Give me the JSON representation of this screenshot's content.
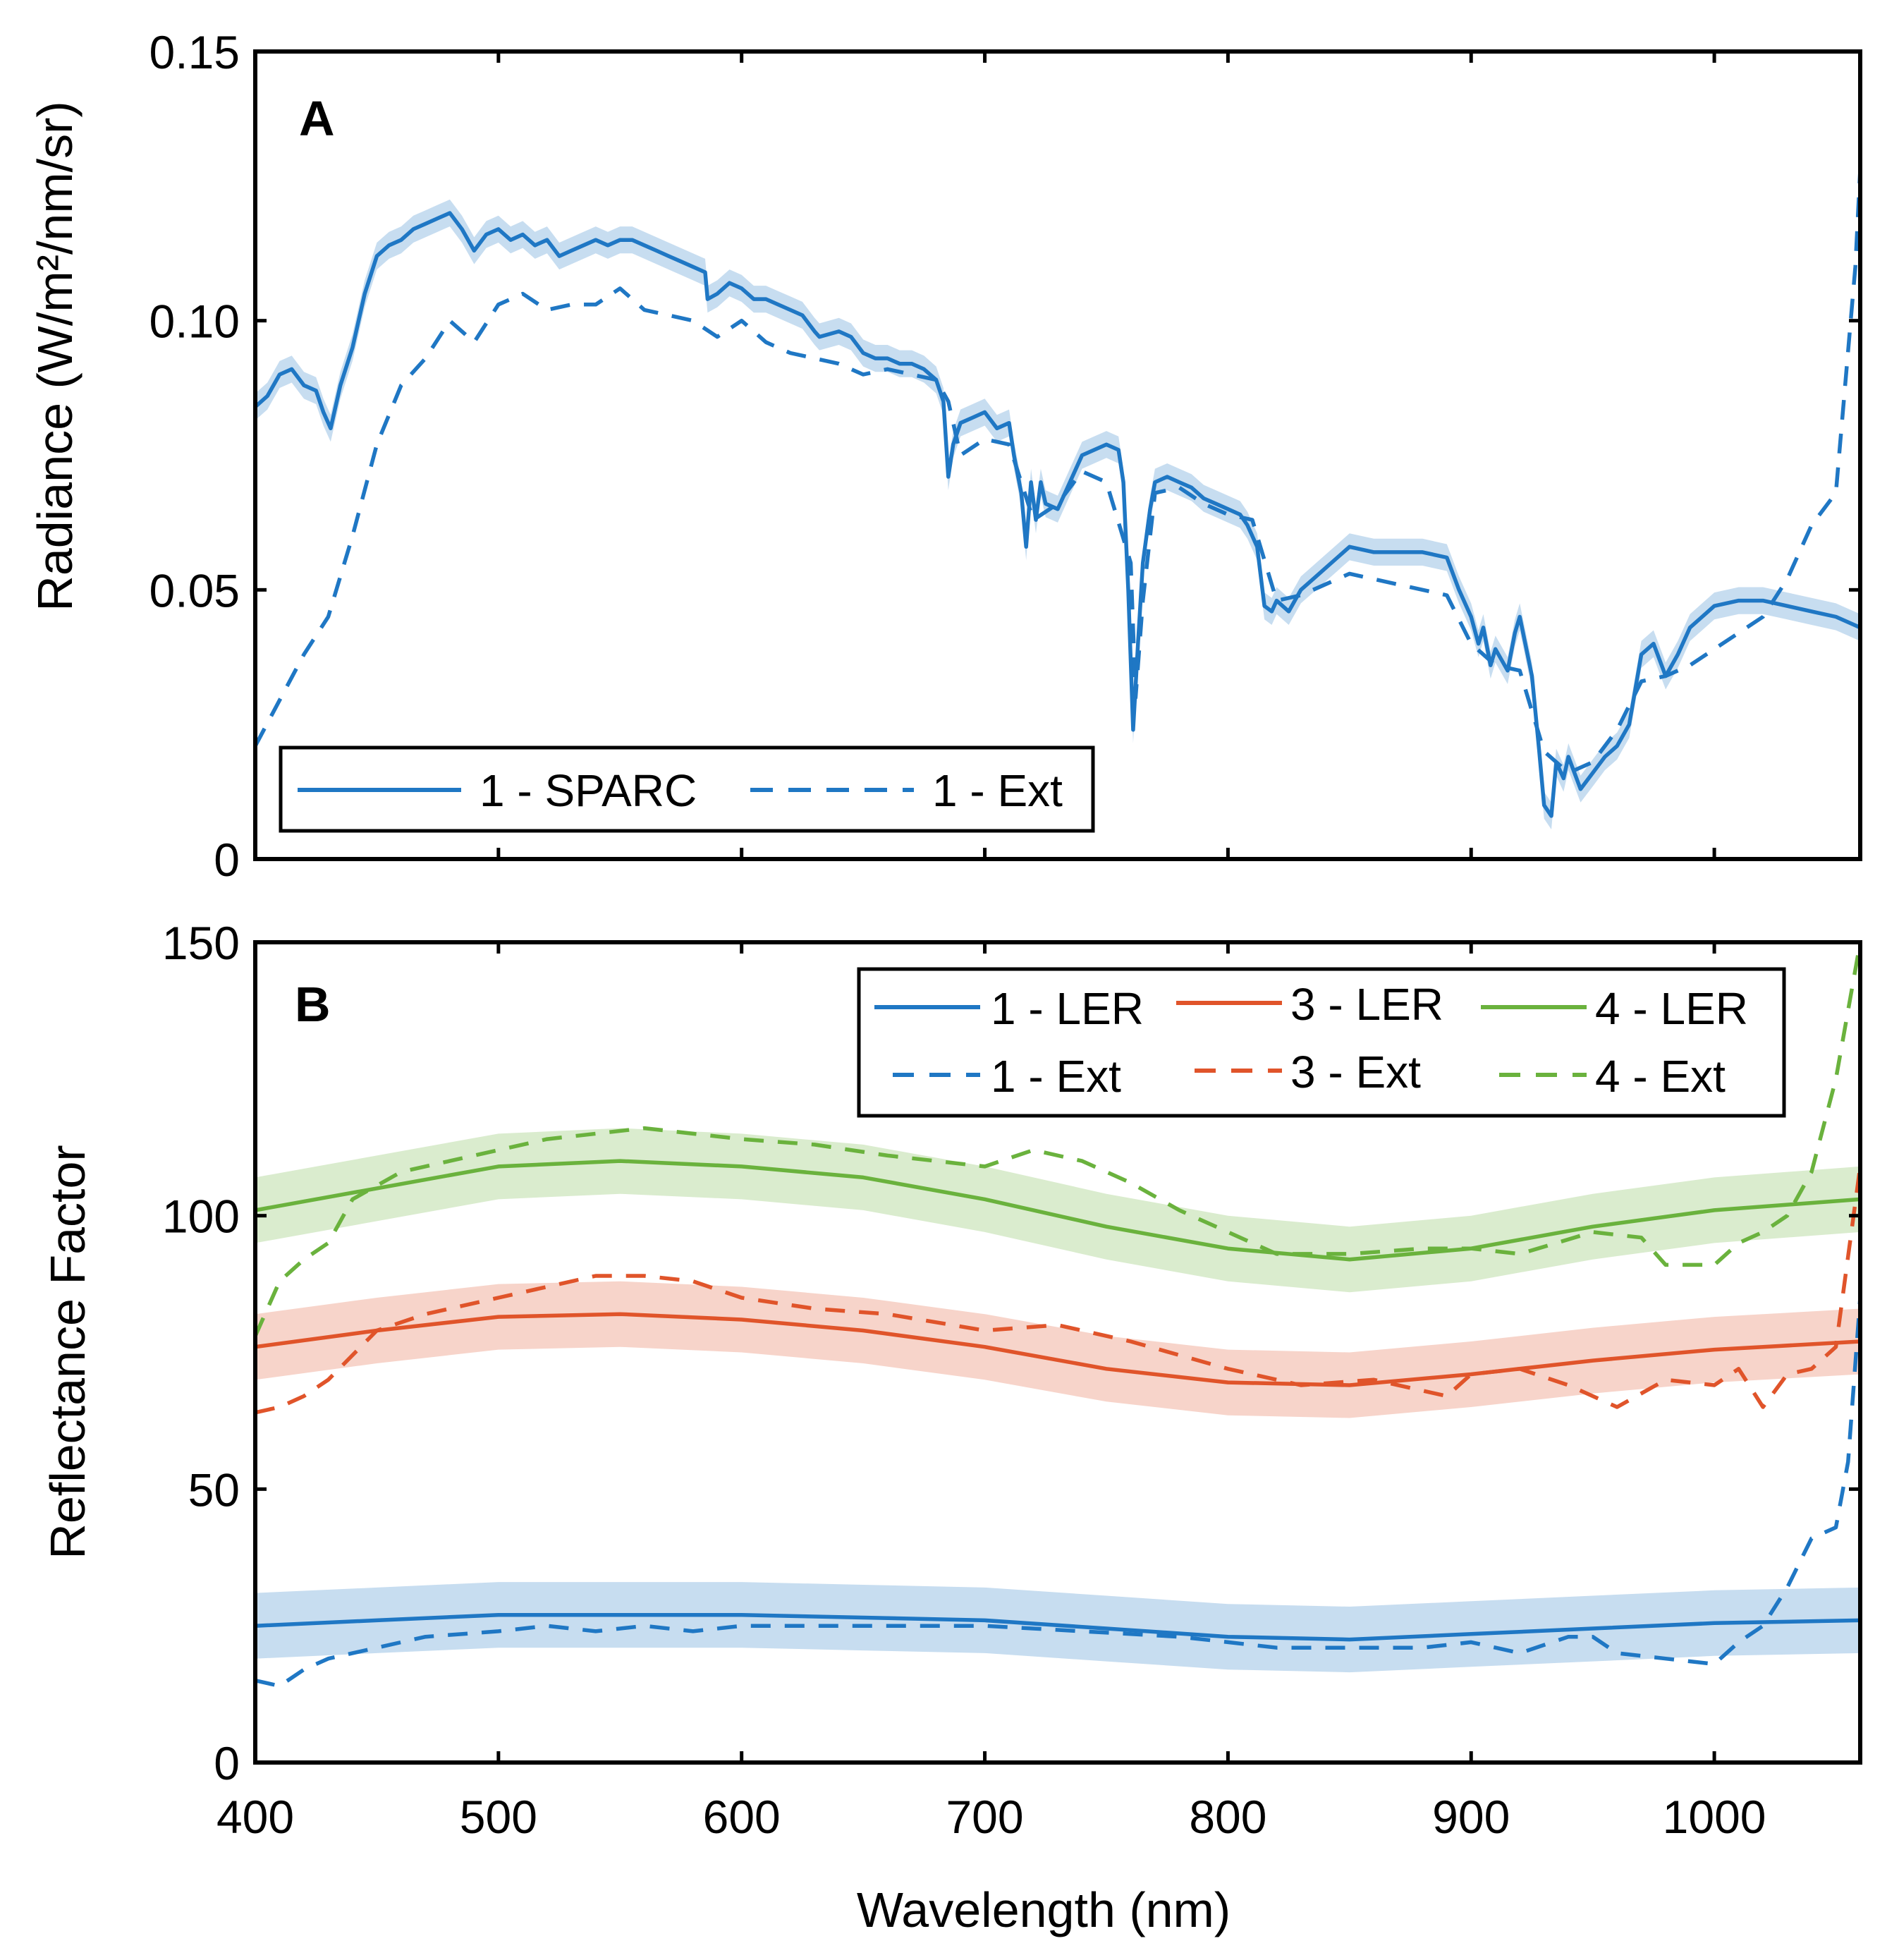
{
  "chart_data": [
    {
      "panel": "A",
      "type": "line",
      "ylabel": "Radiance (W/m²/nm/sr)",
      "xlabel": "",
      "xlim": [
        400,
        1060
      ],
      "ylim": [
        0,
        0.15
      ],
      "xticks": [
        400,
        500,
        600,
        700,
        800,
        900,
        1000
      ],
      "yticks": [
        0,
        0.05,
        0.1,
        0.15
      ],
      "ytick_labels": [
        "0",
        "0.05",
        "0.10",
        "0.15"
      ],
      "legend": "bottom-left",
      "series": [
        {
          "name": "1 - SPARC",
          "color": "#1f77c4",
          "style": "solid",
          "band": 0.0025,
          "x": [
            400,
            405,
            410,
            415,
            420,
            425,
            428,
            431,
            435,
            440,
            445,
            450,
            455,
            460,
            465,
            470,
            475,
            480,
            485,
            490,
            495,
            500,
            505,
            510,
            515,
            520,
            525,
            530,
            535,
            540,
            545,
            550,
            555,
            560,
            565,
            570,
            575,
            580,
            585,
            586,
            590,
            595,
            600,
            605,
            610,
            615,
            620,
            625,
            630,
            632,
            640,
            645,
            650,
            655,
            660,
            665,
            670,
            675,
            680,
            683,
            685,
            687,
            690,
            695,
            700,
            705,
            710,
            712,
            715,
            717,
            719,
            721,
            723,
            725,
            730,
            735,
            740,
            745,
            750,
            755,
            757,
            759,
            761,
            763,
            765,
            768,
            770,
            775,
            780,
            785,
            790,
            795,
            800,
            805,
            808,
            812,
            815,
            818,
            820,
            825,
            830,
            835,
            840,
            845,
            850,
            860,
            870,
            880,
            890,
            895,
            900,
            903,
            905,
            908,
            910,
            915,
            918,
            920,
            925,
            928,
            930,
            933,
            935,
            938,
            940,
            945,
            950,
            955,
            960,
            965,
            970,
            975,
            980,
            985,
            990,
            1000,
            1010,
            1020,
            1030,
            1040,
            1050,
            1060
          ],
          "y": [
            0.084,
            0.086,
            0.09,
            0.091,
            0.088,
            0.087,
            0.083,
            0.08,
            0.088,
            0.095,
            0.105,
            0.112,
            0.114,
            0.115,
            0.117,
            0.118,
            0.119,
            0.12,
            0.117,
            0.113,
            0.116,
            0.117,
            0.115,
            0.116,
            0.114,
            0.115,
            0.112,
            0.113,
            0.114,
            0.115,
            0.114,
            0.115,
            0.115,
            0.114,
            0.113,
            0.112,
            0.111,
            0.11,
            0.109,
            0.104,
            0.105,
            0.107,
            0.106,
            0.104,
            0.104,
            0.103,
            0.102,
            0.101,
            0.098,
            0.097,
            0.098,
            0.097,
            0.094,
            0.093,
            0.093,
            0.092,
            0.092,
            0.091,
            0.089,
            0.085,
            0.071,
            0.077,
            0.081,
            0.082,
            0.083,
            0.08,
            0.081,
            0.075,
            0.068,
            0.058,
            0.07,
            0.063,
            0.07,
            0.066,
            0.065,
            0.07,
            0.075,
            0.076,
            0.077,
            0.076,
            0.07,
            0.05,
            0.024,
            0.04,
            0.055,
            0.065,
            0.07,
            0.071,
            0.07,
            0.069,
            0.067,
            0.066,
            0.065,
            0.064,
            0.062,
            0.058,
            0.047,
            0.046,
            0.048,
            0.046,
            0.05,
            0.052,
            0.054,
            0.056,
            0.058,
            0.057,
            0.057,
            0.057,
            0.056,
            0.05,
            0.045,
            0.04,
            0.043,
            0.036,
            0.039,
            0.035,
            0.042,
            0.045,
            0.034,
            0.02,
            0.01,
            0.008,
            0.018,
            0.015,
            0.019,
            0.013,
            0.016,
            0.019,
            0.021,
            0.025,
            0.038,
            0.04,
            0.034,
            0.038,
            0.043,
            0.047,
            0.048,
            0.048,
            0.047,
            0.046,
            0.045,
            0.043
          ]
        },
        {
          "name": "1 - Ext",
          "color": "#1f77c4",
          "style": "dashed",
          "x": [
            400,
            420,
            430,
            440,
            450,
            460,
            470,
            480,
            490,
            500,
            510,
            520,
            530,
            540,
            550,
            560,
            570,
            580,
            590,
            600,
            610,
            620,
            630,
            640,
            650,
            660,
            670,
            680,
            685,
            690,
            700,
            710,
            720,
            730,
            740,
            750,
            760,
            762,
            765,
            770,
            780,
            790,
            800,
            810,
            820,
            830,
            840,
            850,
            860,
            870,
            880,
            890,
            900,
            910,
            920,
            930,
            940,
            950,
            960,
            970,
            980,
            990,
            1000,
            1010,
            1020,
            1030,
            1040,
            1050,
            1058,
            1060
          ],
          "y": [
            0.021,
            0.038,
            0.045,
            0.06,
            0.077,
            0.088,
            0.093,
            0.1,
            0.096,
            0.103,
            0.105,
            0.102,
            0.103,
            0.103,
            0.106,
            0.102,
            0.101,
            0.1,
            0.097,
            0.1,
            0.096,
            0.094,
            0.093,
            0.092,
            0.09,
            0.091,
            0.09,
            0.089,
            0.085,
            0.075,
            0.078,
            0.077,
            0.063,
            0.066,
            0.072,
            0.07,
            0.055,
            0.03,
            0.048,
            0.068,
            0.069,
            0.066,
            0.064,
            0.063,
            0.048,
            0.049,
            0.051,
            0.053,
            0.052,
            0.051,
            0.05,
            0.049,
            0.04,
            0.036,
            0.035,
            0.02,
            0.016,
            0.018,
            0.024,
            0.033,
            0.034,
            0.036,
            0.039,
            0.042,
            0.045,
            0.052,
            0.062,
            0.068,
            0.11,
            0.128
          ]
        }
      ]
    },
    {
      "panel": "B",
      "type": "line",
      "ylabel": "Reflectance Factor",
      "xlabel": "Wavelength (nm)",
      "xlim": [
        400,
        1060
      ],
      "ylim": [
        0,
        150
      ],
      "xticks": [
        400,
        500,
        600,
        700,
        800,
        900,
        1000
      ],
      "xtick_labels": [
        "400",
        "500",
        "600",
        "700",
        "800",
        "900",
        "1000"
      ],
      "yticks": [
        0,
        50,
        100,
        150
      ],
      "ytick_labels": [
        "0",
        "50",
        "100",
        "150"
      ],
      "legend": "top-right",
      "series": [
        {
          "name": "1 - LER",
          "color": "#1f77c4",
          "style": "solid",
          "band": 6,
          "x": [
            400,
            450,
            500,
            550,
            600,
            650,
            700,
            750,
            800,
            850,
            900,
            950,
            1000,
            1060
          ],
          "y": [
            25,
            26,
            27,
            27,
            27,
            26.5,
            26,
            24.5,
            23,
            22.5,
            23.5,
            24.5,
            25.5,
            26
          ]
        },
        {
          "name": "3 - LER",
          "color": "#e0542a",
          "style": "solid",
          "band": 6,
          "x": [
            400,
            450,
            500,
            550,
            600,
            650,
            700,
            750,
            800,
            850,
            900,
            950,
            1000,
            1060
          ],
          "y": [
            76,
            79,
            81.5,
            82,
            81,
            79,
            76,
            72,
            69.5,
            69,
            71,
            73.5,
            75.5,
            77
          ]
        },
        {
          "name": "4 - LER",
          "color": "#6ab23d",
          "style": "solid",
          "band": 6,
          "x": [
            400,
            450,
            500,
            550,
            600,
            650,
            700,
            750,
            800,
            850,
            900,
            950,
            1000,
            1060
          ],
          "y": [
            101,
            105,
            109,
            110,
            109,
            107,
            103,
            98,
            94,
            92,
            94,
            98,
            101,
            103
          ]
        },
        {
          "name": "1 - Ext",
          "color": "#1f77c4",
          "style": "dashed",
          "x": [
            400,
            410,
            420,
            430,
            450,
            470,
            500,
            520,
            540,
            560,
            580,
            600,
            630,
            660,
            700,
            740,
            780,
            800,
            820,
            850,
            880,
            900,
            920,
            940,
            950,
            960,
            980,
            1000,
            1010,
            1020,
            1030,
            1040,
            1050,
            1055,
            1060
          ],
          "y": [
            15,
            14,
            17,
            19,
            21,
            23,
            24,
            25,
            24,
            25,
            24,
            25,
            25,
            25,
            25,
            24,
            23,
            22,
            21,
            21,
            21,
            22,
            20,
            23,
            23,
            20,
            19,
            18,
            22,
            25,
            32,
            41,
            43,
            55,
            85
          ]
        },
        {
          "name": "3 - Ext",
          "color": "#e0542a",
          "style": "dashed",
          "x": [
            400,
            410,
            420,
            430,
            450,
            470,
            500,
            520,
            540,
            560,
            580,
            600,
            630,
            660,
            700,
            730,
            760,
            800,
            830,
            860,
            890,
            900,
            920,
            940,
            960,
            980,
            1000,
            1010,
            1020,
            1030,
            1040,
            1050,
            1060
          ],
          "y": [
            64,
            65,
            67,
            70,
            79,
            82,
            85,
            87,
            89,
            89,
            88,
            85,
            83,
            82,
            79,
            80,
            77,
            72,
            69,
            70,
            67,
            71,
            72,
            69,
            65,
            70,
            69,
            72,
            65,
            71,
            72,
            76,
            109
          ]
        },
        {
          "name": "4 - Ext",
          "color": "#6ab23d",
          "style": "dashed",
          "x": [
            400,
            410,
            420,
            430,
            440,
            460,
            480,
            500,
            520,
            540,
            560,
            580,
            600,
            630,
            660,
            700,
            720,
            740,
            760,
            780,
            800,
            820,
            850,
            880,
            900,
            920,
            950,
            970,
            980,
            1000,
            1010,
            1020,
            1030,
            1040,
            1050,
            1060
          ],
          "y": [
            78,
            88,
            92,
            95,
            103,
            108,
            110,
            112,
            114,
            115,
            116,
            115,
            114,
            113,
            111,
            109,
            112,
            110,
            106,
            101,
            97,
            93,
            93,
            94,
            94,
            93,
            97,
            96,
            91,
            91,
            95,
            97,
            100,
            108,
            125,
            150
          ]
        }
      ]
    }
  ]
}
